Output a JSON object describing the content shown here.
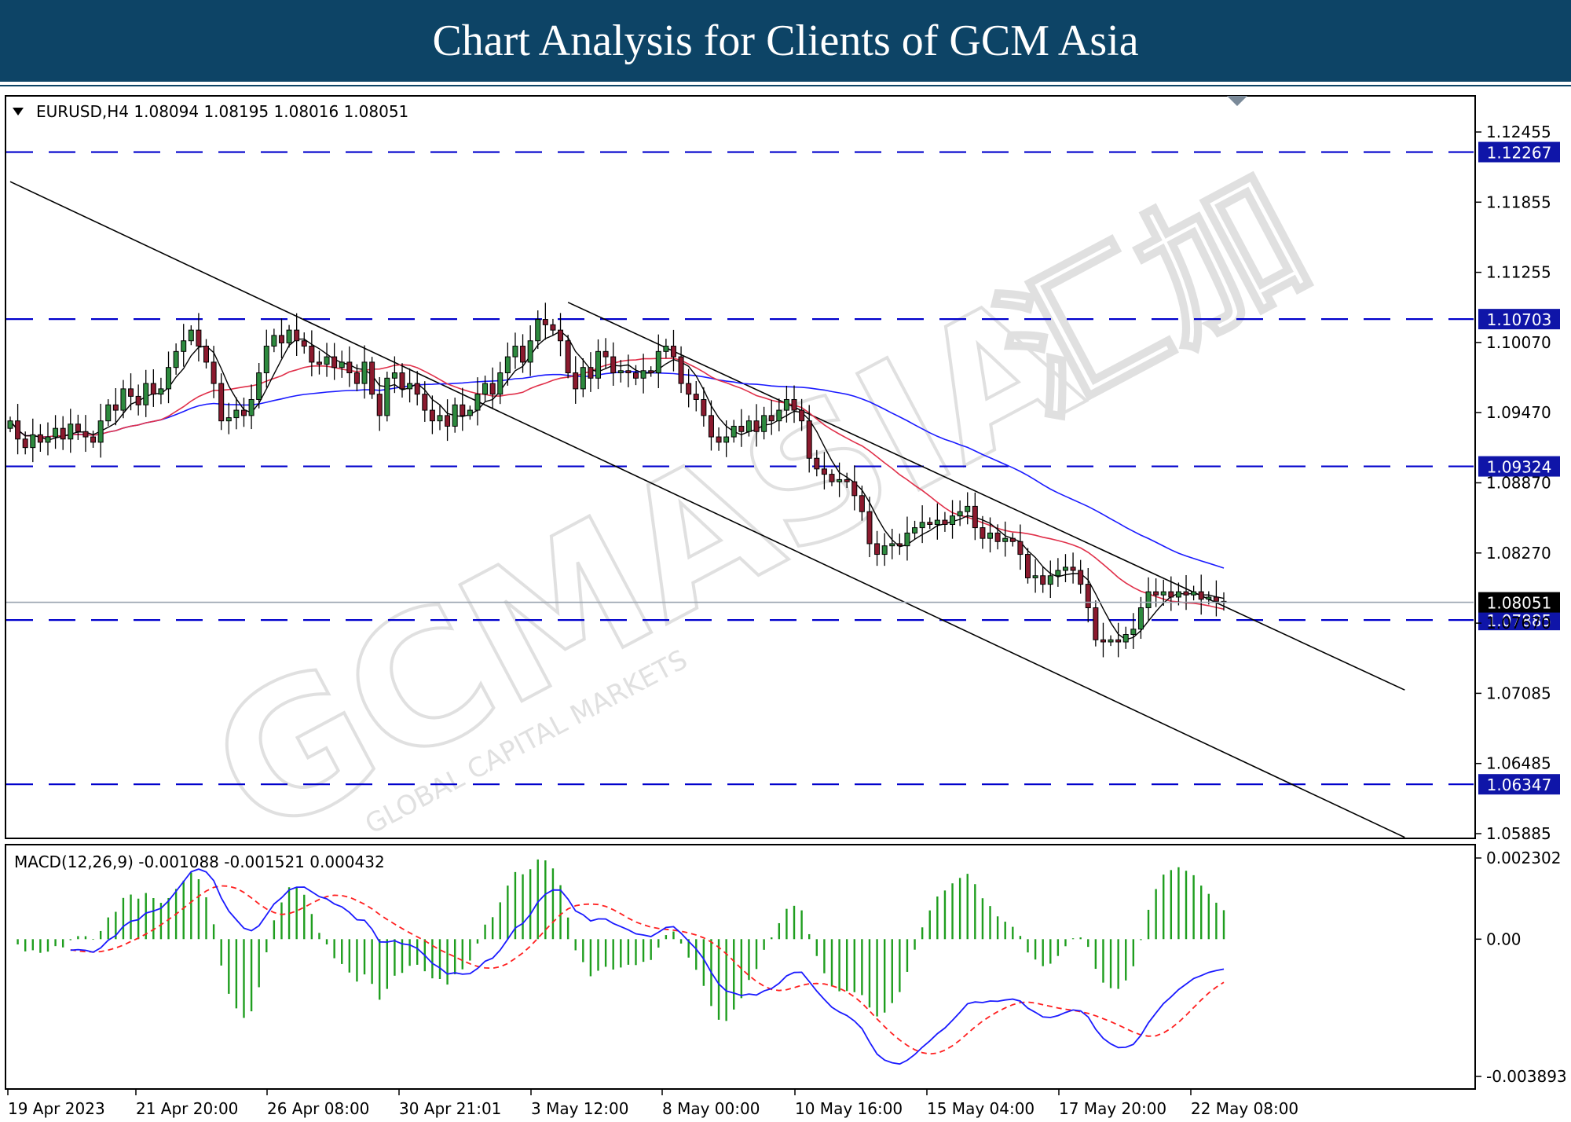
{
  "banner": {
    "title": "Chart Analysis for Clients of GCM Asia"
  },
  "watermark": {
    "text": "GCMASIA",
    "cjk": "汇加",
    "tagline": "GLOBAL CAPITAL MARKETS"
  },
  "price_pane": {
    "header": "EURUSD,H4  1.08094 1.08195 1.08016 1.08051",
    "symbol": "EURUSD",
    "timeframe": "H4",
    "ohlc": {
      "open": 1.08094,
      "high": 1.08195,
      "low": 1.08016,
      "close": 1.08051
    }
  },
  "macd_pane": {
    "header": "MACD(12,26,9) -0.001088 -0.001521 0.000432",
    "macd": -0.001088,
    "signal": -0.001521,
    "histogram": 0.000432
  },
  "colors": {
    "banner": "#0d4466",
    "level_line": "#0000cc",
    "bull": "#2d8a3e",
    "bear": "#8b1a2e",
    "ma_fast": "#000000",
    "ma_mid": "#e0304a",
    "ma_slow": "#1a1aff",
    "macd_line": "#1a1aff",
    "signal_line": "#ff2020",
    "hist": "#1f9e1f",
    "price_line": "#9aa4b0"
  },
  "chart_data": {
    "type": "candlestick",
    "y_ticks": [
      "1.12455",
      "1.11855",
      "1.11255",
      "1.10070",
      "1.09470",
      "1.08870",
      "1.08270",
      "1.07670",
      "1.07085",
      "1.06485",
      "1.05885"
    ],
    "levels": [
      {
        "label": "1.12267",
        "value": 1.12267
      },
      {
        "label": "1.10703",
        "value": 1.10703
      },
      {
        "label": "1.09324",
        "value": 1.09324
      },
      {
        "label": "1.07885",
        "value": 1.07885
      },
      {
        "label": "1.06347",
        "value": 1.06347
      }
    ],
    "current_price": {
      "label": "1.08051",
      "value": 1.08051
    },
    "x_ticks": [
      "19 Apr 2023",
      "21 Apr 20:00",
      "26 Apr 08:00",
      "30 Apr 21:01",
      "3 May 12:00",
      "8 May 00:00",
      "10 May 16:00",
      "15 May 04:00",
      "17 May 20:00",
      "22 May 08:00"
    ],
    "macd_ticks": [
      "0.002302",
      "0.00",
      "-0.003893"
    ],
    "macd_range": [
      -0.003893,
      0.002302
    ],
    "trendlines": [
      {
        "from": [
          0,
          1.1199
        ],
        "to": [
          185,
          1.0585
        ]
      },
      {
        "from": [
          74,
          1.1086
        ],
        "to": [
          185,
          1.0723
        ]
      }
    ],
    "closes": [
      1.0975,
      1.0958,
      1.095,
      1.0962,
      1.0955,
      1.096,
      1.0968,
      1.0958,
      1.0972,
      1.0965,
      1.096,
      1.0955,
      1.0975,
      1.099,
      1.0985,
      1.1005,
      1.0998,
      1.099,
      1.101,
      1.1,
      1.1005,
      1.1025,
      1.104,
      1.105,
      1.106,
      1.1045,
      1.103,
      1.101,
      1.0975,
      1.0978,
      1.0985,
      1.098,
      1.0995,
      1.102,
      1.1045,
      1.1055,
      1.1048,
      1.106,
      1.105,
      1.1045,
      1.103,
      1.1028,
      1.1035,
      1.1025,
      1.103,
      1.102,
      1.101,
      1.103,
      1.1,
      1.098,
      1.1015,
      1.102,
      1.1005,
      1.101,
      1.1,
      1.0985,
      1.0975,
      1.098,
      1.097,
      1.099,
      1.098,
      1.0985,
      1.1,
      1.101,
      1.1,
      1.102,
      1.1035,
      1.1045,
      1.103,
      1.105,
      1.107,
      1.1065,
      1.106,
      1.105,
      1.102,
      1.1005,
      1.1025,
      1.1015,
      1.104,
      1.1035,
      1.102,
      1.1022,
      1.102,
      1.1015,
      1.1022,
      1.102,
      1.104,
      1.1045,
      1.1035,
      1.101,
      1.1,
      1.0995,
      1.098,
      1.096,
      1.0955,
      1.096,
      1.097,
      1.0965,
      1.0975,
      1.0965,
      1.098,
      1.0975,
      1.0985,
      1.0995,
      1.0985,
      1.0975,
      1.094,
      1.093,
      1.0925,
      1.0918,
      1.092,
      1.0918,
      1.0905,
      1.089,
      1.086,
      1.085,
      1.0858,
      1.086,
      1.0858,
      1.087,
      1.0875,
      1.088,
      1.0878,
      1.0882,
      1.0878,
      1.0886,
      1.089,
      1.0895,
      1.0875,
      1.0865,
      1.087,
      1.0862,
      1.0865,
      1.0862,
      1.085,
      1.0828,
      1.083,
      1.0822,
      1.083,
      1.0835,
      1.0838,
      1.0835,
      1.0822,
      1.08,
      1.077,
      1.0768,
      1.077,
      1.0768,
      1.0775,
      1.078,
      1.08,
      1.0815,
      1.0812,
      1.0815,
      1.081,
      1.0815,
      1.0812,
      1.0815,
      1.0808,
      1.081,
      1.0806,
      1.0805
    ],
    "macd": [],
    "signal": [],
    "histogram": []
  }
}
